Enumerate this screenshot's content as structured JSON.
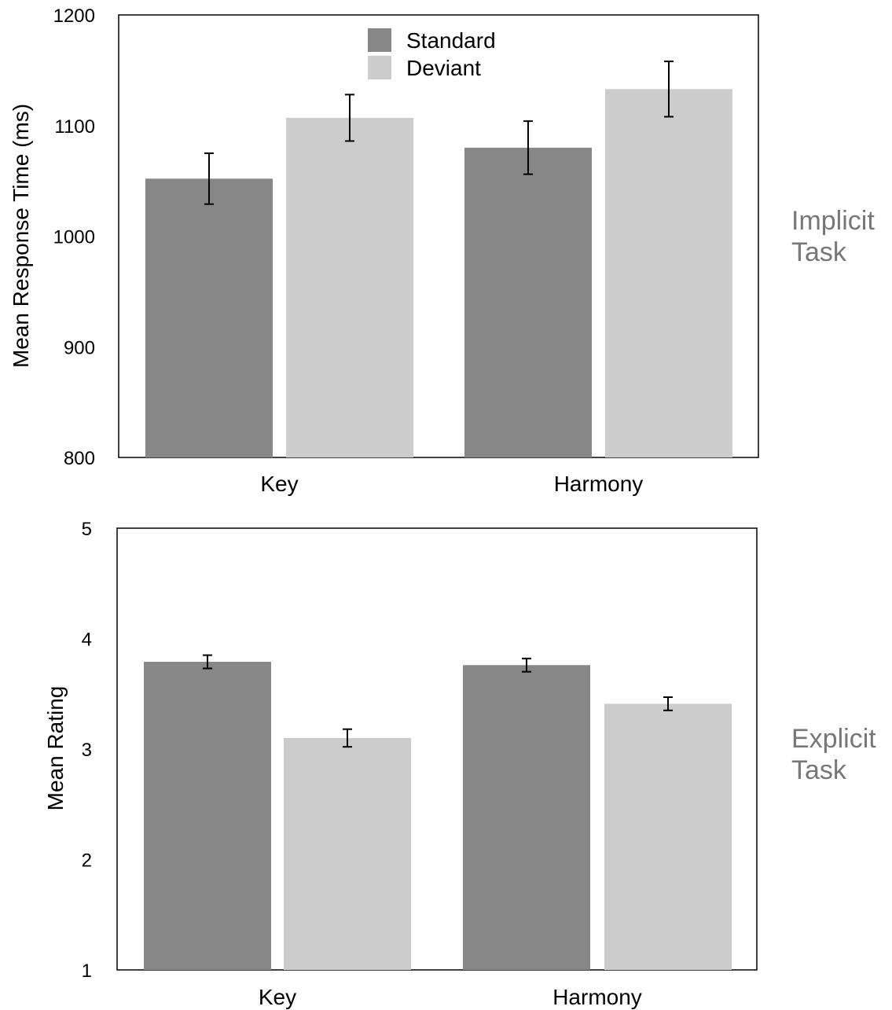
{
  "colors": {
    "standard": "#878787",
    "deviant": "#cccccc",
    "frame": "#000000",
    "side_label": "#777777"
  },
  "legend": {
    "standard_label": "Standard",
    "deviant_label": "Deviant",
    "placement": "top-center"
  },
  "chart_data": [
    {
      "type": "bar",
      "panel": "top",
      "categories": [
        "Key",
        "Harmony"
      ],
      "series": [
        {
          "name": "Standard",
          "values": [
            1052,
            1080
          ],
          "error": [
            23,
            24
          ]
        },
        {
          "name": "Deviant",
          "values": [
            1107,
            1133
          ],
          "error": [
            21,
            25
          ]
        }
      ],
      "title": "",
      "xlabel": "",
      "ylabel": "Mean Response Time (ms)",
      "ylim": [
        800,
        1200
      ],
      "yticks": [
        "800",
        "900",
        "1000",
        "1100",
        "1200"
      ],
      "side_label": [
        "Implicit",
        "Task"
      ],
      "grid": false
    },
    {
      "type": "bar",
      "panel": "bottom",
      "categories": [
        "Key",
        "Harmony"
      ],
      "series": [
        {
          "name": "Standard",
          "values": [
            3.79,
            3.76
          ],
          "error": [
            0.06,
            0.06
          ]
        },
        {
          "name": "Deviant",
          "values": [
            3.1,
            3.41
          ],
          "error": [
            0.08,
            0.06
          ]
        }
      ],
      "title": "",
      "xlabel": "",
      "ylabel": "Mean Rating",
      "ylim": [
        1,
        5
      ],
      "yticks": [
        "1",
        "2",
        "3",
        "4",
        "5"
      ],
      "side_label": [
        "Explicit",
        "Task"
      ],
      "grid": false
    }
  ]
}
